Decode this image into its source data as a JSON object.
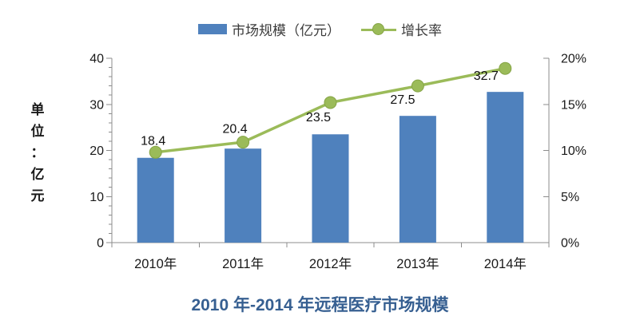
{
  "page": {
    "background": "#FFFFFF"
  },
  "legend": {
    "items": [
      {
        "label": "市场规模（亿元）",
        "swatch": "bar",
        "color": "#4F81BD"
      },
      {
        "label": "增长率",
        "swatch": "line-marker",
        "color": "#9BBB59"
      }
    ]
  },
  "y_axis_unit_label": "单位：亿元",
  "title": {
    "text": "2010 年-2014 年远程医疗市场规模",
    "color": "#365F91"
  },
  "chart_data": {
    "type": "bar",
    "subtype": "bar-line-combo",
    "categories": [
      "2010年",
      "2011年",
      "2012年",
      "2013年",
      "2014年"
    ],
    "series": [
      {
        "name": "市场规模（亿元）",
        "type": "bar",
        "axis": "left",
        "color": "#4F81BD",
        "values": [
          18.4,
          20.4,
          23.5,
          27.5,
          32.7
        ],
        "data_labels": [
          "18.4",
          "20.4",
          "23.5",
          "27.5",
          "32.7"
        ]
      },
      {
        "name": "增长率",
        "type": "line",
        "axis": "right",
        "color": "#9BBB59",
        "values_percent": [
          9.8,
          10.9,
          15.2,
          17.0,
          18.9
        ]
      }
    ],
    "left_axis": {
      "label": "单位：亿元",
      "min": 0,
      "max": 40,
      "ticks": [
        0,
        10,
        20,
        30,
        40
      ],
      "minor_step": 2
    },
    "right_axis": {
      "min": 0,
      "max": 20,
      "ticks": [
        "0%",
        "5%",
        "10%",
        "15%",
        "20%"
      ]
    },
    "grid": false,
    "legend_position": "top",
    "title": "2010 年-2014 年远程医疗市场规模"
  }
}
